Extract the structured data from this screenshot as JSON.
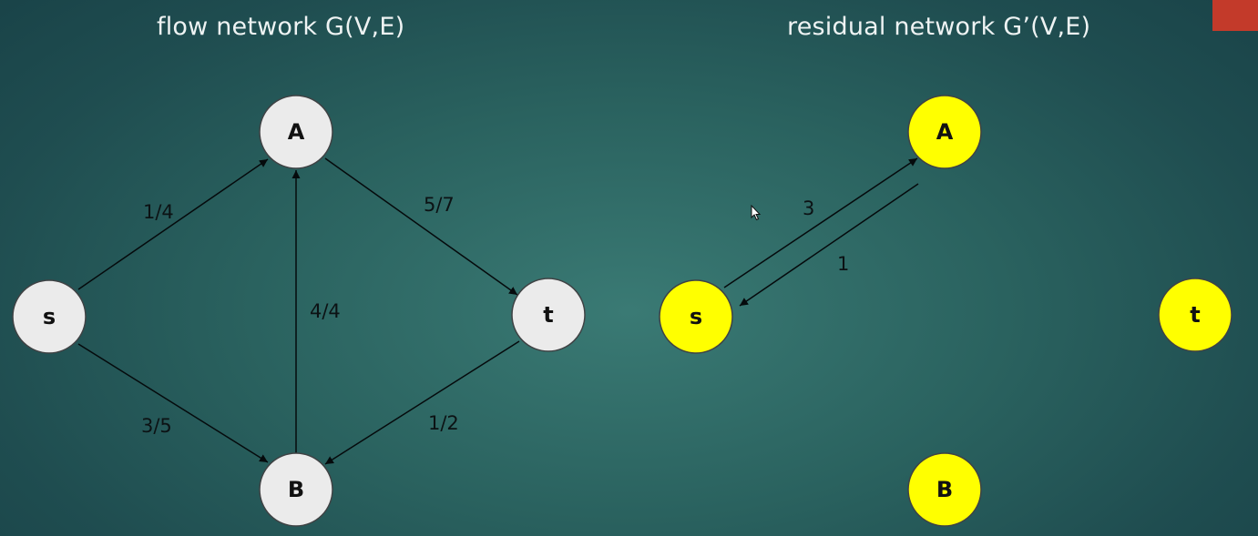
{
  "titles": {
    "left": "flow network G(V,E)",
    "right": "residual network G’(V,E)"
  },
  "flow_network": {
    "nodes": {
      "s": "s",
      "A": "A",
      "B": "B",
      "t": "t"
    },
    "edges": {
      "sA": "1/4",
      "sB": "3/5",
      "BA": "4/4",
      "At": "5/7",
      "tB": "1/2"
    }
  },
  "residual_network": {
    "nodes": {
      "s": "s",
      "A": "A",
      "B": "B",
      "t": "t"
    },
    "edges": {
      "sA": "3",
      "As": "1"
    }
  },
  "colors": {
    "flow_node_fill": "#ebebeb",
    "residual_node_fill": "#ffff00",
    "edge": "#050a0c",
    "corner_accent": "#c33a2a"
  }
}
